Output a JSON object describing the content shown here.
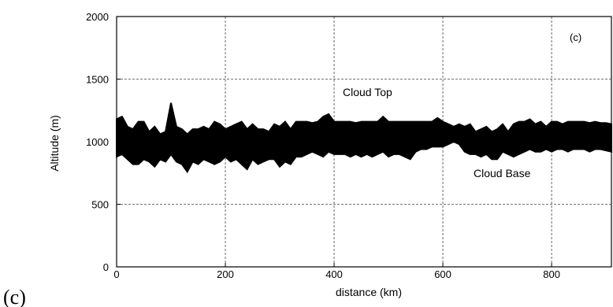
{
  "figure": {
    "panel_label": "(c)"
  },
  "chart_data": {
    "type": "area",
    "xlabel": "distance (km)",
    "ylabel": "Altitude (m)",
    "xlim": [
      0,
      910
    ],
    "ylim": [
      0,
      2000
    ],
    "xticks": [
      0,
      200,
      400,
      600,
      800
    ],
    "yticks": [
      0,
      500,
      1000,
      1500,
      2000
    ],
    "grid": true,
    "inner_label": "(c)",
    "annotations": [
      {
        "text": "Cloud Top",
        "x": 460,
        "y": 1380
      },
      {
        "text": "Cloud Base",
        "x": 720,
        "y": 750
      }
    ],
    "series": [
      {
        "x": [
          0,
          10,
          20,
          30,
          40,
          50,
          60,
          70,
          80,
          90,
          100,
          110,
          120,
          130,
          140,
          150,
          160,
          170,
          180,
          190,
          200,
          210,
          220,
          230,
          240,
          250,
          260,
          270,
          280,
          290,
          300,
          310,
          320,
          330,
          340,
          350,
          360,
          370,
          380,
          390,
          400,
          410,
          420,
          430,
          440,
          450,
          460,
          470,
          480,
          490,
          500,
          510,
          520,
          530,
          540,
          550,
          560,
          570,
          580,
          590,
          600,
          610,
          620,
          630,
          640,
          650,
          660,
          670,
          680,
          690,
          700,
          710,
          720,
          730,
          740,
          750,
          760,
          770,
          780,
          790,
          800,
          810,
          820,
          830,
          840,
          850,
          860,
          870,
          880,
          890,
          900,
          910
        ],
        "top": [
          1180,
          1200,
          1120,
          1100,
          1160,
          1160,
          1080,
          1120,
          1060,
          1080,
          1310,
          1120,
          1100,
          1060,
          1100,
          1100,
          1120,
          1100,
          1160,
          1140,
          1100,
          1120,
          1140,
          1160,
          1100,
          1140,
          1100,
          1100,
          1080,
          1140,
          1120,
          1160,
          1100,
          1160,
          1160,
          1160,
          1150,
          1160,
          1200,
          1220,
          1160,
          1160,
          1160,
          1160,
          1150,
          1160,
          1160,
          1160,
          1160,
          1200,
          1160,
          1160,
          1160,
          1160,
          1160,
          1160,
          1160,
          1160,
          1160,
          1190,
          1160,
          1140,
          1120,
          1140,
          1120,
          1140,
          1080,
          1100,
          1120,
          1080,
          1100,
          1140,
          1080,
          1140,
          1160,
          1160,
          1180,
          1140,
          1160,
          1120,
          1160,
          1160,
          1140,
          1160,
          1160,
          1160,
          1160,
          1150,
          1160,
          1150,
          1150,
          1140
        ],
        "base": [
          880,
          900,
          860,
          820,
          820,
          860,
          840,
          800,
          860,
          840,
          900,
          840,
          820,
          760,
          840,
          820,
          860,
          840,
          820,
          840,
          880,
          840,
          860,
          820,
          780,
          860,
          820,
          840,
          860,
          860,
          800,
          840,
          820,
          880,
          880,
          900,
          920,
          900,
          880,
          920,
          900,
          900,
          900,
          880,
          900,
          880,
          900,
          880,
          900,
          920,
          880,
          900,
          900,
          880,
          860,
          920,
          940,
          940,
          960,
          960,
          960,
          980,
          1000,
          980,
          920,
          900,
          900,
          880,
          900,
          860,
          860,
          920,
          900,
          880,
          900,
          920,
          940,
          920,
          920,
          940,
          920,
          940,
          940,
          920,
          940,
          940,
          940,
          920,
          940,
          940,
          930,
          920
        ]
      }
    ]
  }
}
